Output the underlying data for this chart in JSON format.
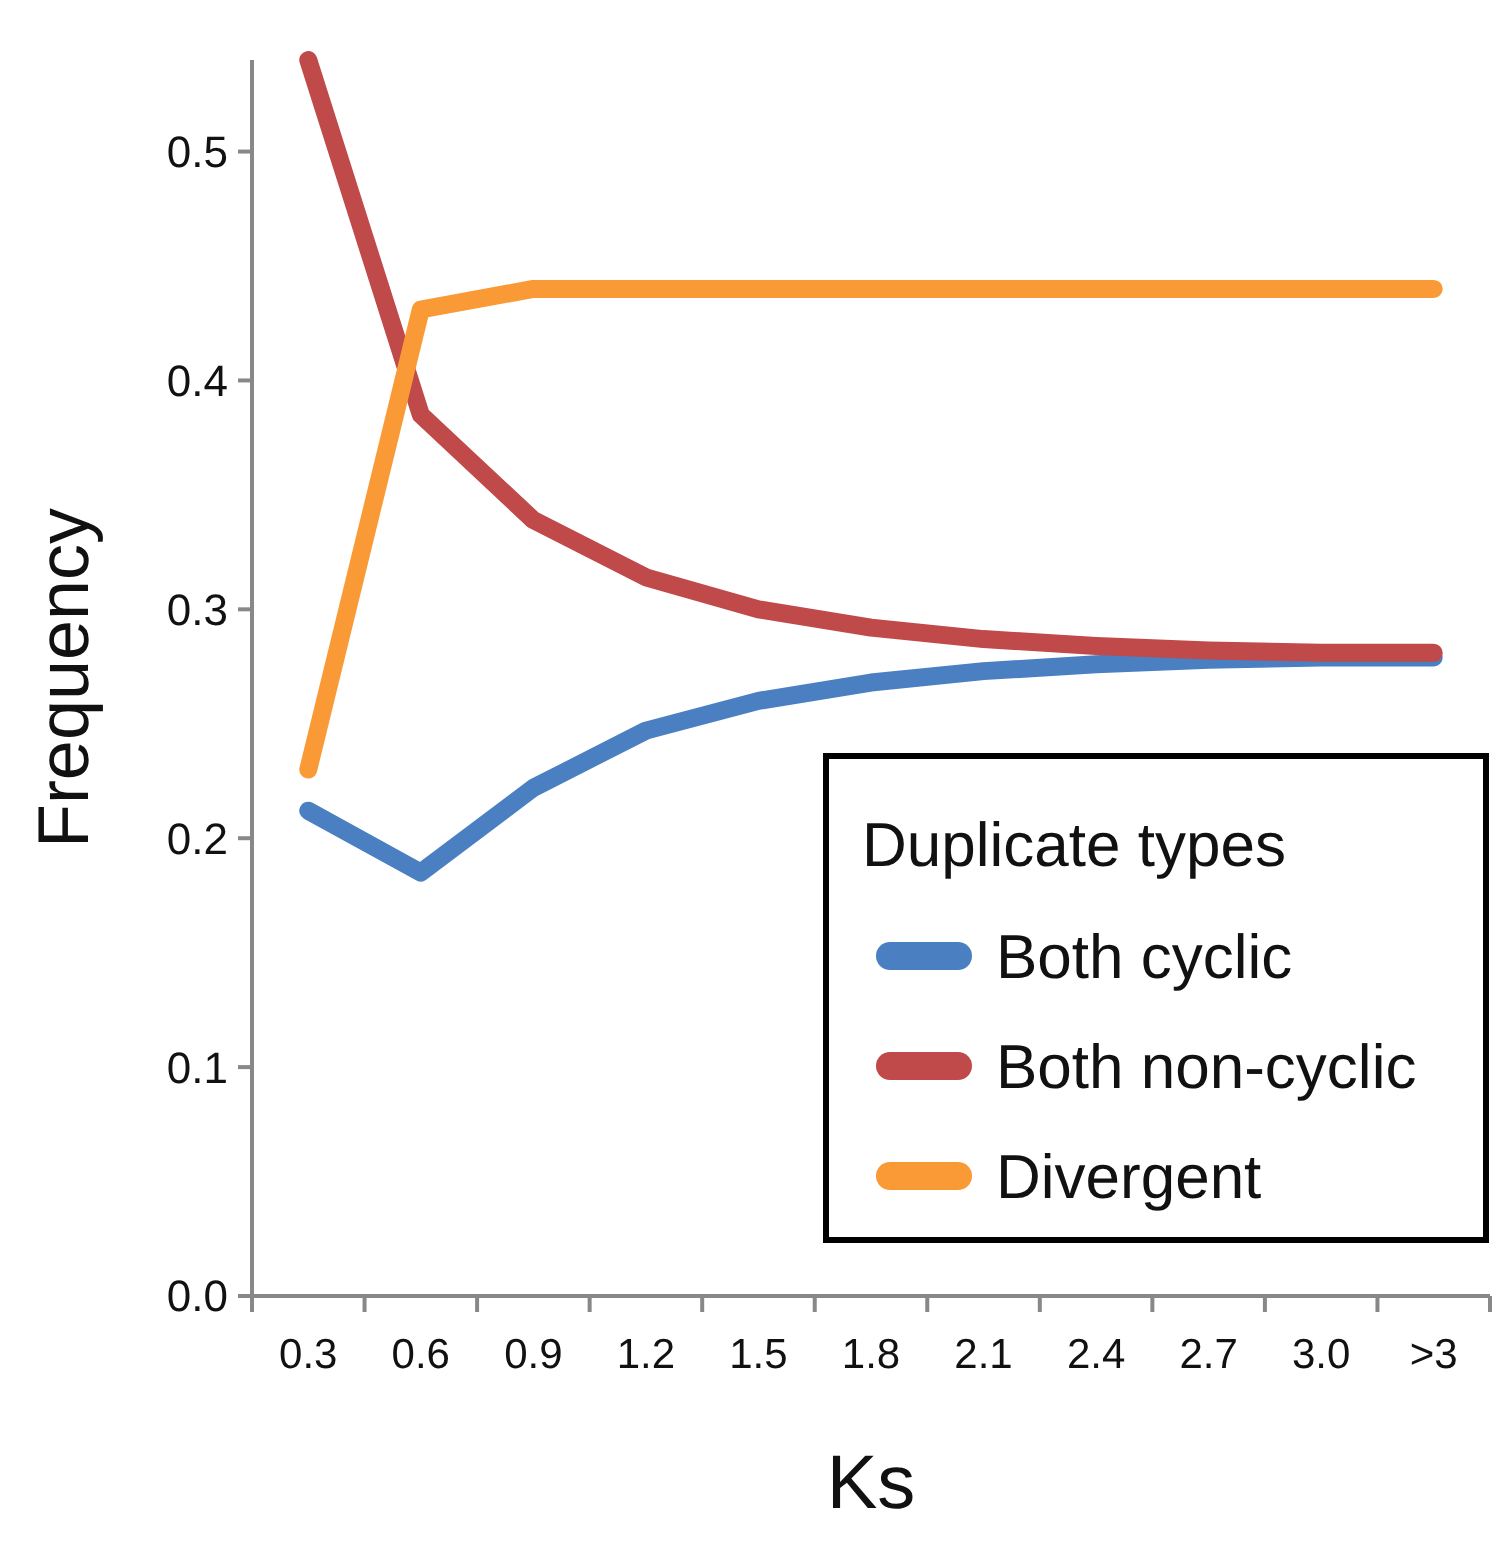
{
  "chart_data": {
    "type": "line",
    "xlabel": "Ks",
    "ylabel": "Frequency",
    "legend_title": "Duplicate types",
    "legend": "bottom right",
    "grid": false,
    "categories": [
      "0.3",
      "0.6",
      "0.9",
      "1.2",
      "1.5",
      "1.8",
      "2.1",
      "2.4",
      "2.7",
      "3.0",
      ">3"
    ],
    "ylim": [
      0,
      0.54
    ],
    "yticks": [
      {
        "value": 0,
        "label": "0.0"
      },
      0.1,
      0.2,
      0.3,
      0.4,
      0.5
    ],
    "series": [
      {
        "name": "Both cyclic",
        "color": "#4a7fc1",
        "values": [
          0.212,
          0.185,
          0.222,
          0.247,
          0.26,
          0.268,
          0.273,
          0.276,
          0.278,
          0.279,
          0.279
        ]
      },
      {
        "name": "Both non-cyclic",
        "color": "#c0494a",
        "values": [
          0.54,
          0.385,
          0.339,
          0.314,
          0.3,
          0.292,
          0.287,
          0.284,
          0.282,
          0.281,
          0.281
        ]
      },
      {
        "name": "Divergent",
        "color": "#fa9a36",
        "values": [
          0.23,
          0.431,
          0.44,
          0.44,
          0.44,
          0.44,
          0.44,
          0.44,
          0.44,
          0.44,
          0.44
        ]
      }
    ]
  }
}
